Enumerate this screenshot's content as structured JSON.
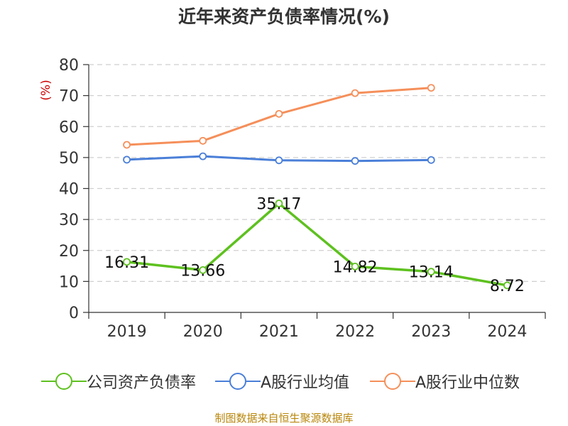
{
  "chart_data": {
    "type": "line",
    "title": "近年来资产负债率情况(%)",
    "ylabel": "(%)",
    "xlabel": "",
    "categories": [
      "2019",
      "2020",
      "2021",
      "2022",
      "2023",
      "2024"
    ],
    "ylim": [
      0,
      80
    ],
    "yticks": [
      0,
      10,
      20,
      30,
      40,
      50,
      60,
      70,
      80
    ],
    "grid": true,
    "legend_position": "bottom",
    "series": [
      {
        "name": "公司资产负债率",
        "color": "#5ec11f",
        "values": [
          16.31,
          13.66,
          35.17,
          14.82,
          13.14,
          8.72
        ],
        "data_labels": [
          "16.31",
          "13.66",
          "35.17",
          "14.82",
          "13.14",
          "8.72"
        ]
      },
      {
        "name": "A股行业均值",
        "color": "#4a7fd8",
        "values": [
          49.3,
          50.4,
          49.1,
          48.9,
          49.2,
          null
        ]
      },
      {
        "name": "A股行业中位数",
        "color": "#f58f5a",
        "values": [
          54.1,
          55.4,
          64.1,
          70.8,
          72.5,
          null
        ]
      }
    ]
  },
  "footer": {
    "source": "制图数据来自恒生聚源数据库"
  }
}
